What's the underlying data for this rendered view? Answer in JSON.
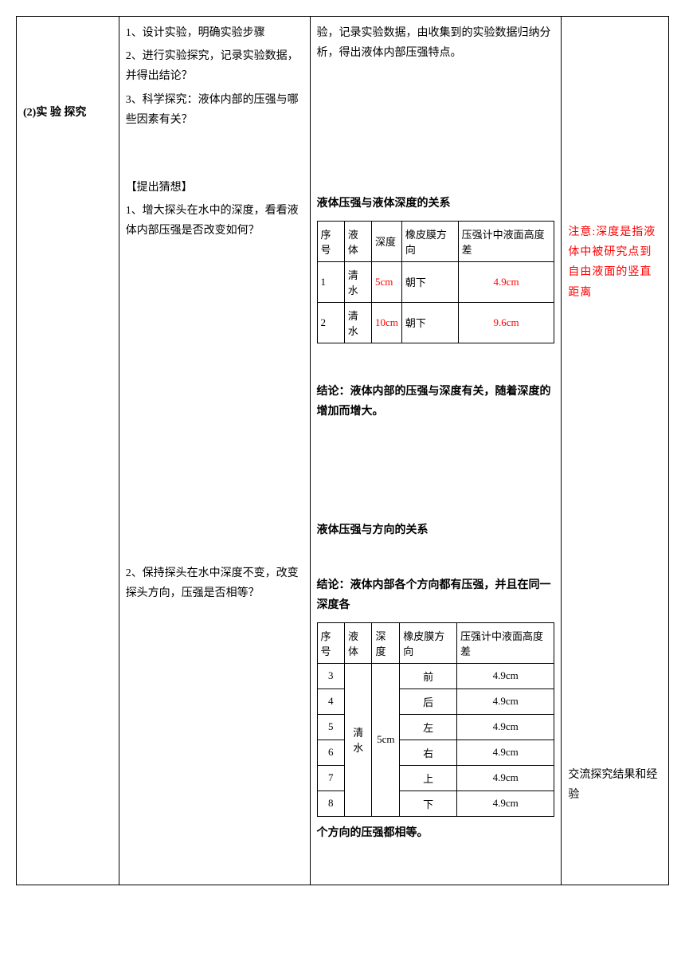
{
  "col1": {
    "section_label": "(2)实 验 探究"
  },
  "col2": {
    "item1": "1、设计实验，明确实验步骤",
    "item2": "2、进行实验探究，记录实验数据，并得出结论？",
    "item3": "3、科学探究：液体内部的压强与哪些因素有关？",
    "hypothesis_label": "【提出猜想】",
    "hyp1": "1、增大探头在水中的深度，看看液体内部压强是否改变如何？",
    "hyp2": "2、保持探头在水中深度不变，改变探头方向，压强是否相等？"
  },
  "col3": {
    "intro": "验，记录实验数据，由收集到的实验数据归纳分析，得出液体内部压强特点。",
    "title1": "液体压强与液体深度的关系",
    "table1": {
      "headers": {
        "h1": "序号",
        "h2": "液体",
        "h3": "深度",
        "h4": "橡皮膜方向",
        "h5": "压强计中液面高度差"
      },
      "rows": [
        {
          "no": "1",
          "liquid": "清水",
          "depth": "5cm",
          "dir": "朝下",
          "diff": "4.9cm"
        },
        {
          "no": "2",
          "liquid": "清水",
          "depth": "10cm",
          "dir": "朝下",
          "diff": "9.6cm"
        }
      ]
    },
    "conclusion1": "结论：液体内部的压强与深度有关，随着深度的增加而增大。",
    "title2": "液体压强与方向的关系",
    "conclusion2_pre": "结论：液体内部各个方向都有压强，并且在同一深度各",
    "table2": {
      "headers": {
        "h1": "序号",
        "h2": "液体",
        "h3": "深度",
        "h4": "橡皮膜方向",
        "h5": "压强计中液面高度差"
      },
      "liquid": "清水",
      "depth": "5cm",
      "rows": [
        {
          "no": "3",
          "dir": "前",
          "diff": "4.9cm"
        },
        {
          "no": "4",
          "dir": "后",
          "diff": "4.9cm"
        },
        {
          "no": "5",
          "dir": "左",
          "diff": "4.9cm"
        },
        {
          "no": "6",
          "dir": "右",
          "diff": "4.9cm"
        },
        {
          "no": "7",
          "dir": "上",
          "diff": "4.9cm"
        },
        {
          "no": "8",
          "dir": "下",
          "diff": "4.9cm"
        }
      ]
    },
    "conclusion2_post": "个方向的压强都相等。"
  },
  "col4": {
    "note": "注意:深度是指液体中被研究点到自由液面的竖直距离",
    "exchange": "交流探究结果和经验"
  }
}
